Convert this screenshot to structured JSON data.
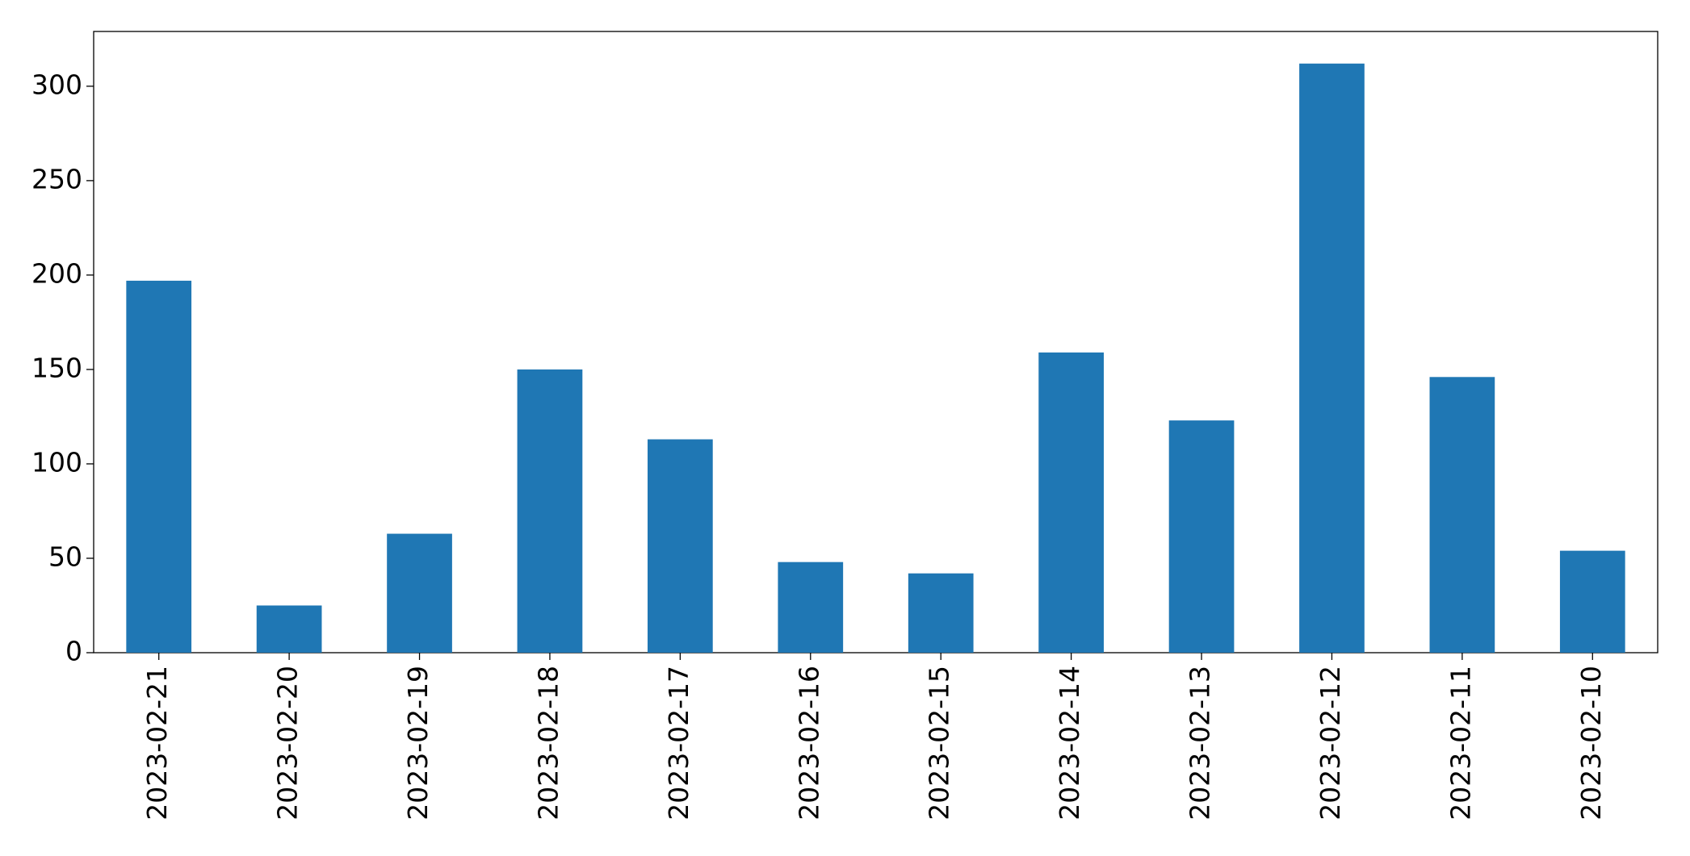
{
  "chart_data": {
    "type": "bar",
    "categories": [
      "2023-02-21",
      "2023-02-20",
      "2023-02-19",
      "2023-02-18",
      "2023-02-17",
      "2023-02-16",
      "2023-02-15",
      "2023-02-14",
      "2023-02-13",
      "2023-02-12",
      "2023-02-11",
      "2023-02-10"
    ],
    "values": [
      197,
      25,
      63,
      150,
      113,
      48,
      42,
      159,
      123,
      312,
      146,
      54
    ],
    "color": "#1f77b4",
    "ylim": [
      0,
      329
    ],
    "yticks": [
      0,
      50,
      100,
      150,
      200,
      250,
      300
    ],
    "grid": false
  }
}
